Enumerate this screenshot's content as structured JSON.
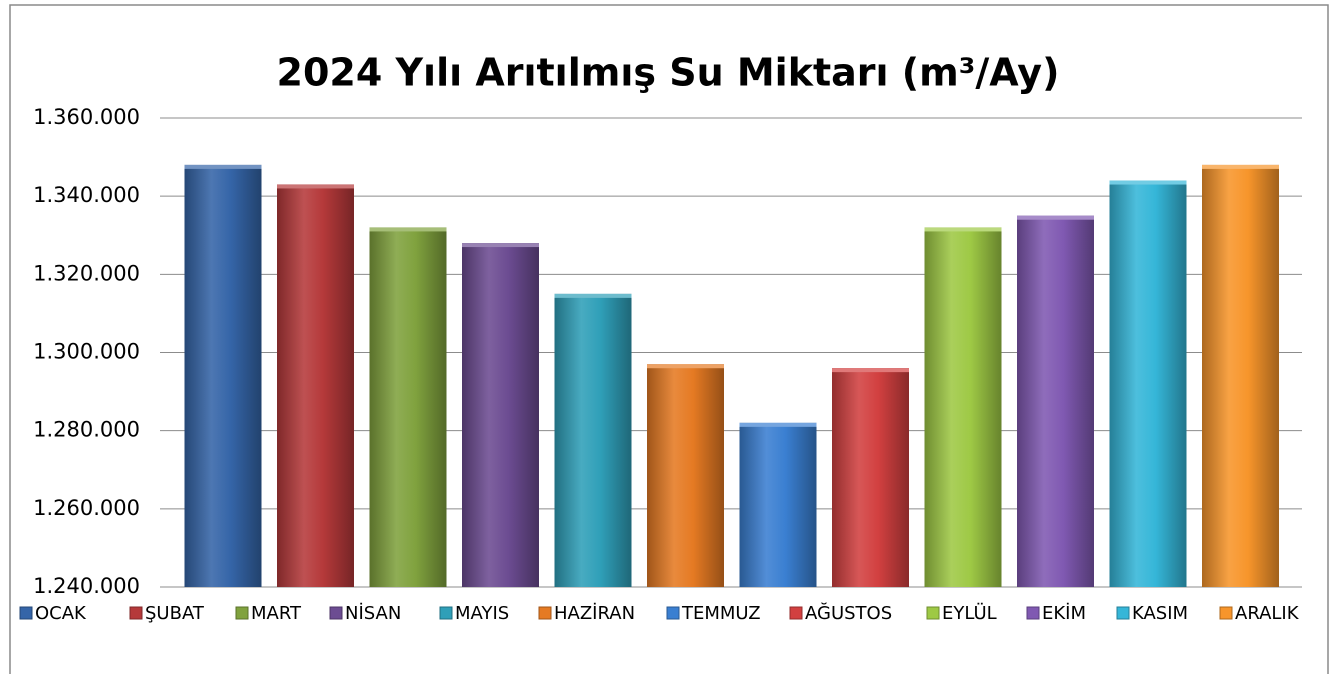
{
  "chart_data": {
    "type": "bar",
    "title": "2024 Yılı Arıtılmış Su Miktarı (m³/Ay)",
    "categories": [
      "OCAK",
      "ŞUBAT",
      "MART",
      "NİSAN",
      "MAYIS",
      "HAZİRAN",
      "TEMMUZ",
      "AĞUSTOS",
      "EYLÜL",
      "EKİM",
      "KASIM",
      "ARALIK"
    ],
    "values": [
      1348000,
      1343000,
      1332000,
      1328000,
      1315000,
      1297000,
      1282000,
      1296000,
      1332000,
      1335000,
      1344000,
      1348000
    ],
    "colors": [
      "#3565a8",
      "#b5393a",
      "#80a23e",
      "#6c4c92",
      "#2f9fb8",
      "#e57a23",
      "#3a7fd1",
      "#d24040",
      "#9ec945",
      "#8059b2",
      "#35b6d8",
      "#f7952b"
    ],
    "ylim": [
      1240000,
      1360000
    ],
    "yticks": [
      {
        "value": 1240000,
        "label": "1.240.000"
      },
      {
        "value": 1260000,
        "label": "1.260.000"
      },
      {
        "value": 1280000,
        "label": "1.280.000"
      },
      {
        "value": 1300000,
        "label": "1.300.000"
      },
      {
        "value": 1320000,
        "label": "1.320.000"
      },
      {
        "value": 1340000,
        "label": "1.340.000"
      },
      {
        "value": 1360000,
        "label": "1.360.000"
      }
    ],
    "grid": true,
    "legend": "bottom"
  }
}
